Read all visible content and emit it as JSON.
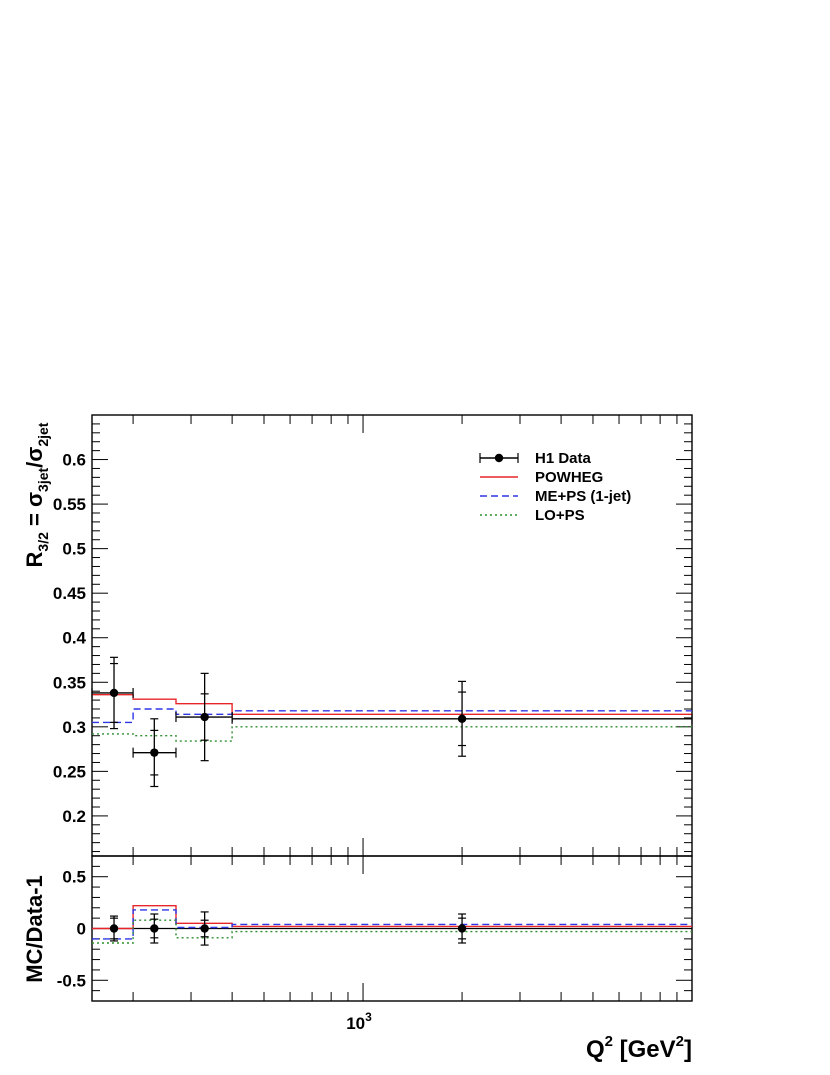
{
  "chart_data": {
    "type": "line",
    "x_scale": "log",
    "xlabel": {
      "main": "Q",
      "sup": "2",
      "unit_open": " [GeV",
      "unit_sup": "2",
      "unit_close": "]"
    },
    "x_ticks": [
      {
        "value": 1000,
        "base": "10",
        "exp": "3"
      }
    ],
    "xlim": [
      150,
      10000
    ],
    "legend_position": "top-right",
    "legend": [
      {
        "key": "data",
        "label": "H1 Data",
        "style": "marker-errorbar",
        "color": "#000000"
      },
      {
        "key": "powheg",
        "label": "POWHEG",
        "style": "solid",
        "color": "#e8262a"
      },
      {
        "key": "meps",
        "label": "ME+PS (1-jet)",
        "style": "dashed",
        "color": "#2f36e6"
      },
      {
        "key": "lops",
        "label": "LO+PS",
        "style": "dotted",
        "color": "#2f8f2f"
      }
    ],
    "bin_edges": [
      150,
      200,
      270,
      400,
      10000
    ],
    "upper": {
      "ylabel": {
        "r": "R",
        "r_sub": "3/2",
        "eq": " = σ",
        "num_sub": "3jet",
        "slash": "/σ",
        "den_sub": "2jet"
      },
      "ylim": [
        0.155,
        0.65
      ],
      "y_ticks": [
        "0.2",
        "0.25",
        "0.3",
        "0.35",
        "0.4",
        "0.45",
        "0.5",
        "0.55",
        "0.6"
      ],
      "data": [
        {
          "x": 175,
          "y": 0.338,
          "stat": 0.033,
          "tot": 0.04
        },
        {
          "x": 232,
          "y": 0.271,
          "stat": 0.025,
          "tot": 0.038
        },
        {
          "x": 330,
          "y": 0.311,
          "stat": 0.026,
          "tot": 0.049
        },
        {
          "x": 2000,
          "y": 0.309,
          "stat": 0.03,
          "tot": 0.042
        }
      ],
      "series": [
        {
          "key": "powheg",
          "name": "POWHEG",
          "values": [
            0.336,
            0.331,
            0.326,
            0.314
          ]
        },
        {
          "key": "meps",
          "name": "ME+PS (1-jet)",
          "values": [
            0.305,
            0.32,
            0.314,
            0.318
          ]
        },
        {
          "key": "lops",
          "name": "LO+PS",
          "values": [
            0.292,
            0.29,
            0.284,
            0.3
          ]
        }
      ]
    },
    "lower": {
      "ylabel": "MC/Data-1",
      "ylim": [
        -0.7,
        0.7
      ],
      "y_ticks": [
        "-0.5",
        "0",
        "0.5"
      ],
      "data": [
        {
          "x": 175,
          "y": 0.0,
          "stat": 0.1,
          "tot": 0.12
        },
        {
          "x": 232,
          "y": 0.0,
          "stat": 0.09,
          "tot": 0.14
        },
        {
          "x": 330,
          "y": 0.0,
          "stat": 0.08,
          "tot": 0.16
        },
        {
          "x": 2000,
          "y": 0.0,
          "stat": 0.1,
          "tot": 0.14
        }
      ],
      "series": [
        {
          "key": "powheg",
          "name": "POWHEG",
          "values": [
            0.0,
            0.22,
            0.05,
            0.02
          ]
        },
        {
          "key": "meps",
          "name": "ME+PS (1-jet)",
          "values": [
            -0.1,
            0.18,
            0.01,
            0.04
          ]
        },
        {
          "key": "lops",
          "name": "LO+PS",
          "values": [
            -0.14,
            0.08,
            -0.09,
            -0.03
          ]
        }
      ]
    }
  }
}
